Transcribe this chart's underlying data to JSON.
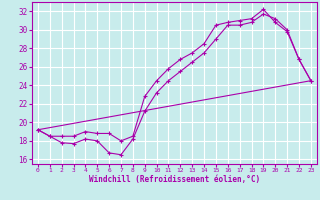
{
  "xlabel": "Windchill (Refroidissement éolien,°C)",
  "xlim": [
    -0.5,
    23.5
  ],
  "ylim": [
    15.5,
    33.0
  ],
  "yticks": [
    16,
    18,
    20,
    22,
    24,
    26,
    28,
    30,
    32
  ],
  "xticks": [
    0,
    1,
    2,
    3,
    4,
    5,
    6,
    7,
    8,
    9,
    10,
    11,
    12,
    13,
    14,
    15,
    16,
    17,
    18,
    19,
    20,
    21,
    22,
    23
  ],
  "bg_color": "#c8ecec",
  "line_color": "#aa00aa",
  "grid_color": "#ffffff",
  "line1_x": [
    0,
    1,
    2,
    3,
    4,
    5,
    6,
    7,
    8,
    9,
    10,
    11,
    12,
    13,
    14,
    15,
    16,
    17,
    18,
    19,
    20,
    21,
    22,
    23
  ],
  "line1_y": [
    19.2,
    18.5,
    17.8,
    17.7,
    18.2,
    18.0,
    16.7,
    16.5,
    18.2,
    21.2,
    23.2,
    24.5,
    25.5,
    26.5,
    27.5,
    29.0,
    30.5,
    30.5,
    30.8,
    31.7,
    31.2,
    30.0,
    26.8,
    24.5
  ],
  "line2_x": [
    0,
    1,
    2,
    3,
    4,
    5,
    6,
    7,
    8,
    9,
    10,
    11,
    12,
    13,
    14,
    15,
    16,
    17,
    18,
    19,
    20,
    21,
    22,
    23
  ],
  "line2_y": [
    19.2,
    18.5,
    18.5,
    18.5,
    19.0,
    18.8,
    18.8,
    18.0,
    18.5,
    22.8,
    24.5,
    25.8,
    26.8,
    27.5,
    28.5,
    30.5,
    30.8,
    31.0,
    31.2,
    32.2,
    30.8,
    29.8,
    26.8,
    24.5
  ],
  "line3_x": [
    0,
    23
  ],
  "line3_y": [
    19.2,
    24.5
  ]
}
